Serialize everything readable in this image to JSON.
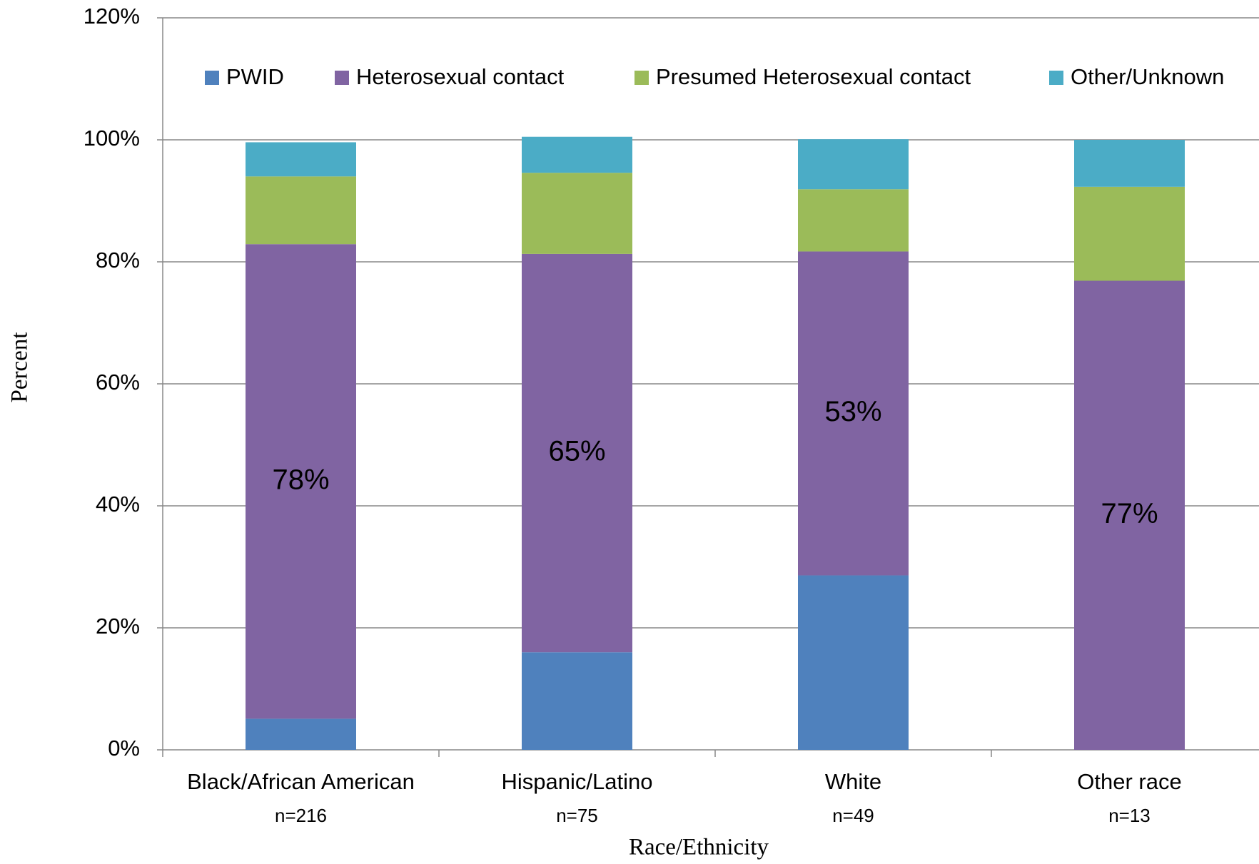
{
  "chart_data": {
    "type": "stacked_bar",
    "x_label": "Race/Ethnicity",
    "y_label": "Percent",
    "categories": [
      "Black/African American",
      "Hispanic/Latino",
      "White",
      "Other race"
    ],
    "category_counts": [
      "n=216",
      "n=75",
      "n=49",
      "n=13"
    ],
    "series": [
      {
        "name": "PWID",
        "color": "#4f81bd",
        "values": [
          5.1,
          16,
          28.6,
          0
        ]
      },
      {
        "name": "Heterosexual contact",
        "color": "#8064a2",
        "values": [
          77.8,
          65.3,
          53.1,
          76.9
        ],
        "value_labels": [
          "78%",
          "65%",
          "53%",
          "77%"
        ]
      },
      {
        "name": "Presumed Heterosexual contact",
        "color": "#9bbb59",
        "values": [
          11.1,
          13.3,
          10.2,
          15.4
        ]
      },
      {
        "name": "Other/Unknown",
        "color": "#4bacc6",
        "values": [
          5.6,
          5.9,
          8.2,
          7.7
        ]
      }
    ],
    "ylim": [
      0,
      120
    ],
    "yticks": [
      {
        "value": 0,
        "label": "0%"
      },
      {
        "value": 20,
        "label": "20%"
      },
      {
        "value": 40,
        "label": "40%"
      },
      {
        "value": 60,
        "label": "60%"
      },
      {
        "value": 80,
        "label": "80%"
      },
      {
        "value": 100,
        "label": "100%"
      },
      {
        "value": 120,
        "label": "120%"
      }
    ],
    "grid": true,
    "legend": "top"
  }
}
